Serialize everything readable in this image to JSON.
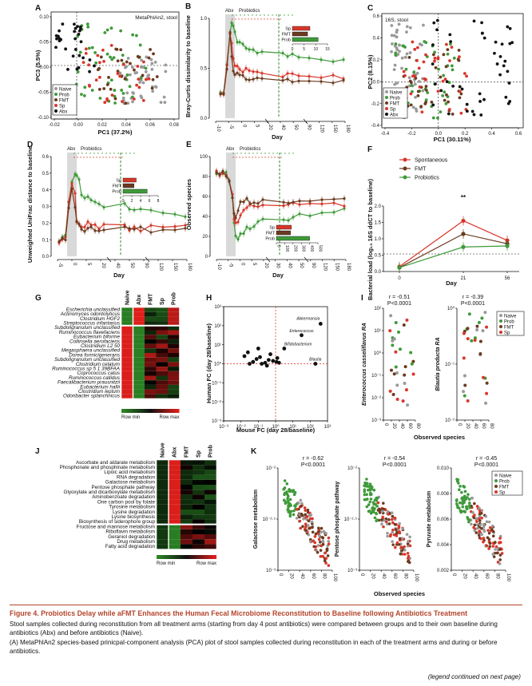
{
  "caption": {
    "title": "Figure 4. Probiotics Delay while aFMT Enhances the Human Fecal Microbiome Reconstitution to Baseline following Antibiotics Treatment",
    "body": "Stool samples collected during reconstitution from all treatment arms (starting from day 4 post antibiotics) were compared between groups and to their own baseline during antibiotics (Abx) and before antibiotics (Naive).",
    "panel_a": "(A) MetaPhlAn2 species-based prinicpal-component analysis (PCA) plot of stool samples collected during reconstitution in each of the treatment arms and during or before antibiotics.",
    "continued": "(legend continued on next page)"
  },
  "colors": {
    "naive": "#9a9a9a",
    "prob": "#3f9a3a",
    "fmt": "#6b3a1f",
    "sp": "#d8372b",
    "abx": "#111111",
    "red": "#e8201c",
    "green": "#2e8b26"
  },
  "panels": {
    "A": {
      "letter": "A",
      "annot": "MetaPhlAn2, stool",
      "xlabel": "PC1 (37.2%)",
      "ylabel": "PC3 (5.5%)",
      "xticks": [
        "-0.02",
        "0.00",
        "0.02",
        "0.04",
        "0.06",
        "0.08"
      ],
      "yticks": [
        "0.10",
        "0.05",
        "0.00",
        "-0.05",
        "-0.10"
      ],
      "legend": [
        "Naive",
        "Prob",
        "FMT",
        "Sp",
        "Abx"
      ]
    },
    "B": {
      "letter": "B",
      "ylabel": "Bray-Curtis dissimilarity to baseline",
      "xlabel": "Day",
      "abx": "Abx",
      "probiotics": "Probiotics",
      "yticks": [
        "1.0",
        "0.5",
        "0.0"
      ],
      "xticks": [
        "-10",
        "-5",
        "0",
        "5",
        "20",
        "40",
        "50",
        "90",
        "120",
        "150",
        "180"
      ],
      "inset_labels": [
        "Sp",
        "FMT",
        "Prob"
      ],
      "inset_ticks": [
        "0",
        "5",
        "10",
        "15"
      ],
      "inset_values": [
        7.5,
        6.5,
        11
      ]
    },
    "C": {
      "letter": "C",
      "annot": "16S, stool",
      "xlabel": "PC1 (30.11%)",
      "ylabel": "PC2 (8.15%)",
      "xticks": [
        "-0.4",
        "-0.2",
        "0.0",
        "0.2",
        "0.4",
        "0.6"
      ],
      "yticks": [
        "0.6",
        "0.4",
        "0.2",
        "0.0",
        "-0.2",
        "-0.4"
      ],
      "legend": [
        "Naive",
        "Prob",
        "FMT",
        "Sp",
        "Abx"
      ]
    },
    "D": {
      "letter": "D",
      "ylabel": "Unweighted UniFrac distance to baseline",
      "xlabel": "Day",
      "abx": "Abx",
      "probiotics": "Probiotics",
      "yticks": [
        "0.6",
        "0.5",
        "0.4",
        "0.3",
        "0.2",
        "0.1",
        "0.0"
      ],
      "xticks": [
        "-5",
        "0",
        "5",
        "20",
        "40",
        "50",
        "90",
        "120",
        "150",
        "180"
      ],
      "inset_labels": [
        "Sp",
        "FMT",
        "Prob"
      ],
      "inset_ticks": [
        "0",
        "2",
        "4",
        "6",
        "8"
      ],
      "inset_values": [
        3,
        2.5,
        5.5
      ]
    },
    "E": {
      "letter": "E",
      "ylabel": "Observed species",
      "xlabel": "Day",
      "abx": "Abx",
      "probiotics": "Probiotics",
      "yticks": [
        "100",
        "80",
        "60",
        "40",
        "20",
        "0"
      ],
      "xticks": [
        "-10",
        "-5",
        "0",
        "5",
        "20",
        "30",
        "40",
        "50",
        "90",
        "120",
        "150",
        "180"
      ],
      "inset_labels": [
        "Sp",
        "FMT",
        "Prob"
      ],
      "inset_ticks": [
        "0",
        "100",
        "200",
        "300",
        "400",
        "500"
      ],
      "inset_values": [
        180,
        170,
        400
      ]
    },
    "F": {
      "letter": "F",
      "ylabel": "Bacterial load (log₁₀ 16S ddCT to baseline)",
      "xlabel": "Day",
      "sig": "**",
      "yticks": [
        "2.0",
        "1.5",
        "1.0",
        "0.5",
        "0.0"
      ],
      "xticks": [
        "0",
        "21",
        "56"
      ],
      "legend": [
        "Spontaneous",
        "FMT",
        "Probiotics"
      ]
    },
    "G": {
      "letter": "G",
      "cols": [
        "Naive",
        "Abx",
        "FMT",
        "Sp",
        "Prob"
      ],
      "rows": [
        "Escherichia unclassified",
        "Actinomyces odontolyticus",
        "Clostridium HGF2",
        "Streptococcus infantarius",
        "Subdoligranulum unclassified",
        "Ruminococcus flavefaciens",
        "Eubacterium biforme",
        "Collinsella aerofaciens",
        "Clostridium L2 50",
        "Megasphaera unclassified",
        "Dorea formicigenerans",
        "Subdoligranulum unclassified",
        "Clostridium celatum",
        "Ruminococcus sp 5 1 39BFAA",
        "Coprococcus catus",
        "Ruminococcus callidus",
        "Faecalibacterium prausnitzii",
        "Eubacterium hallii",
        "Clostridium leptum",
        "Odoribacter splanchnicus"
      ],
      "scale_min": "Row min",
      "scale_max": "Row max"
    },
    "H": {
      "letter": "H",
      "xlabel": "Mouse FC (day 28/baseline)",
      "ylabel": "Human FC (day 28/baseline)",
      "labels": [
        "Akkermansia",
        "Enterococcus",
        "Bifidobacterium",
        "Blautia"
      ],
      "xticks": [
        "10⁻³",
        "10⁻²",
        "10⁻¹",
        "10⁰",
        "10¹",
        "10²",
        "10³"
      ],
      "yticks": [
        "10³",
        "10²",
        "10¹",
        "10⁰",
        "10⁻¹",
        "10⁻²",
        "10⁻³"
      ]
    },
    "I": {
      "letter": "I",
      "xlabel": "Observed species",
      "left": {
        "r": "r = -0.51",
        "p": "P<0.0001",
        "ylabel": "Enterococcus casseliflavus RA",
        "yticks": [
          "10²",
          "10¹",
          "10⁰",
          "10⁻¹",
          "10⁻²",
          "10⁻³"
        ],
        "xticks": [
          "0",
          "20",
          "40",
          "60",
          "80"
        ]
      },
      "right": {
        "r": "r = -0.39",
        "p": "P<0.0001",
        "ylabel": "Blautia producta RA",
        "yticks": [
          "10⁰",
          "10⁻¹",
          "10⁻²"
        ],
        "xticks": [
          "0",
          "20",
          "40",
          "60",
          "80"
        ]
      },
      "legend": [
        "Naive",
        "Prob",
        "FMT",
        "Sp"
      ]
    },
    "J": {
      "letter": "J",
      "cols": [
        "Naive",
        "Abx",
        "FMT",
        "Sp",
        "Prob"
      ],
      "rows": [
        "Ascorbate and aldarate metabolism",
        "Phosphonate and phosphinate metabolism",
        "Lipoic acid metabolism",
        "RNA degradation",
        "Galactose metabolism",
        "Pentose phosphate pathway",
        "Glyoxylate and dicarboxylate metabolism",
        "Aminobenzoate degradation",
        "One carbon pool by folate",
        "Tyrosine metabolism",
        "Lysine degradation",
        "Lysine biosynthesis",
        "Biosynthesis of siderophore group",
        "Fructose and mannose metabolism",
        "Riboflavin metabolism",
        "Geraniol degradation",
        "Drug metabolism",
        "Fatty acid degradation"
      ],
      "scale_min": "Row min",
      "scale_max": "Row max"
    },
    "K": {
      "letter": "K",
      "xlabel": "Observed species",
      "p1": {
        "r": "r = -0.62",
        "p": "P<0.0001",
        "ylabel": "Galactose metabolism",
        "yticks": [
          "10⁻²",
          "10⁻²·⁵",
          "10⁻³"
        ],
        "xticks": [
          "0",
          "20",
          "40",
          "60",
          "80",
          "100"
        ]
      },
      "p2": {
        "r": "r = -0.54",
        "p": "P<0.0001",
        "ylabel": "Pentose phosphate pathway",
        "yticks": [
          "10⁻²",
          "10⁻²·⁵",
          "10⁻³"
        ],
        "xticks": [
          "0",
          "20",
          "40",
          "60",
          "80",
          "100"
        ]
      },
      "p3": {
        "r": "r = -0.45",
        "p": "P<0.0001",
        "ylabel": "Pyruvate metabolism",
        "yticks": [
          "0.010",
          "0.008",
          "0.006",
          "0.004",
          "0.002"
        ],
        "xticks": [
          "0",
          "20",
          "40",
          "60",
          "80",
          "100"
        ]
      },
      "legend": [
        "Naive",
        "Prob",
        "FMT",
        "Sp"
      ]
    }
  }
}
